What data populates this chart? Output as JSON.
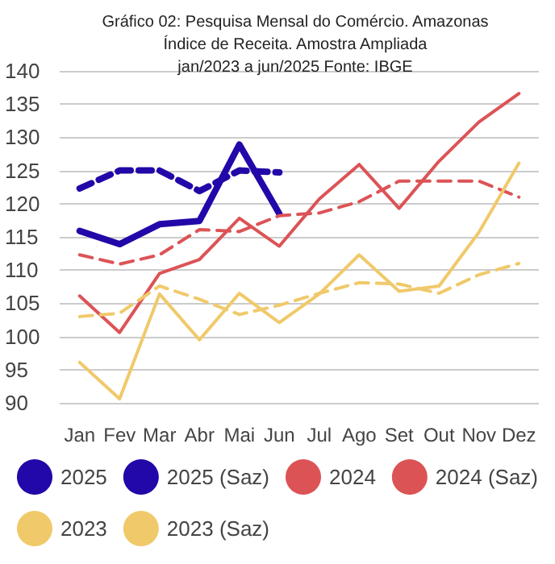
{
  "chart_data": {
    "type": "line",
    "title": "Gráfico 02: Pesquisa Mensal do Comércio. Amazonas\nÍndice de Receita. Amostra Ampliada\njan/2023 a jun/2025 Fonte: IBGE",
    "categories": [
      "Jan",
      "Fev",
      "Mar",
      "Abr",
      "Mai",
      "Jun",
      "Jul",
      "Ago",
      "Set",
      "Out",
      "Nov",
      "Dez"
    ],
    "series": [
      {
        "name": "2025",
        "color": "#2208a8",
        "line_style": "solid",
        "values": [
          115.9,
          113.9,
          116.9,
          117.4,
          128.9,
          118.5,
          null,
          null,
          null,
          null,
          null,
          null
        ]
      },
      {
        "name": "2025 (Saz)",
        "color": "#2208a8",
        "line_style": "dashed",
        "values": [
          122.3,
          125,
          125,
          121.9,
          125,
          124.7,
          null,
          null,
          null,
          null,
          null,
          null
        ]
      },
      {
        "name": "2024",
        "color": "#dc5356",
        "line_style": "solid",
        "values": [
          106.1,
          100.6,
          109.5,
          111.6,
          117.8,
          113.6,
          120.7,
          125.9,
          119.3,
          126.4,
          132.3,
          136.6
        ]
      },
      {
        "name": "2024 (Saz)",
        "color": "#dc5356",
        "line_style": "dashed",
        "values": [
          112.3,
          110.9,
          112.3,
          116.1,
          115.8,
          118.2,
          118.6,
          120.3,
          123.4,
          123.4,
          123.4,
          121
        ]
      },
      {
        "name": "2023",
        "color": "#f0c96a",
        "line_style": "solid",
        "values": [
          96.1,
          90.6,
          106.4,
          99.5,
          106.5,
          102.1,
          106.4,
          112.3,
          106.8,
          107.6,
          115.7,
          126.1
        ]
      },
      {
        "name": "2023 (Saz)",
        "color": "#f0c96a",
        "line_style": "dashed",
        "values": [
          103,
          103.5,
          107.6,
          105.6,
          103.3,
          104.7,
          106.5,
          108.1,
          107.9,
          106.5,
          109.3,
          111
        ]
      }
    ],
    "ylim": [
      90,
      140
    ],
    "yticks": [
      90,
      95,
      100,
      105,
      110,
      115,
      120,
      125,
      130,
      135,
      140
    ],
    "grid": "y",
    "legend": "bottom",
    "marker": "none"
  }
}
